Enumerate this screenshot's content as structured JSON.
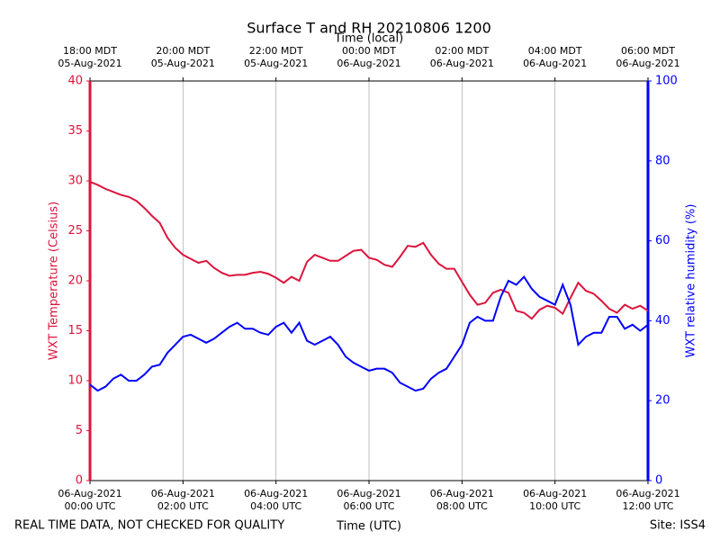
{
  "chart_data": {
    "type": "line",
    "title": "Surface T and RH 20210806 1200",
    "xlabel": "Time (UTC)",
    "x2label": "Time (local)",
    "footnote_left": "REAL TIME DATA, NOT CHECKED FOR QUALITY",
    "footnote_right": "Site: ISS4",
    "x": [
      "2021-08-06 00:00",
      "2021-08-06 00:10",
      "2021-08-06 00:20",
      "2021-08-06 00:30",
      "2021-08-06 00:40",
      "2021-08-06 00:50",
      "2021-08-06 01:00",
      "2021-08-06 01:10",
      "2021-08-06 01:20",
      "2021-08-06 01:30",
      "2021-08-06 01:40",
      "2021-08-06 01:50",
      "2021-08-06 02:00",
      "2021-08-06 02:10",
      "2021-08-06 02:20",
      "2021-08-06 02:30",
      "2021-08-06 02:40",
      "2021-08-06 02:50",
      "2021-08-06 03:00",
      "2021-08-06 03:10",
      "2021-08-06 03:20",
      "2021-08-06 03:30",
      "2021-08-06 03:40",
      "2021-08-06 03:50",
      "2021-08-06 04:00",
      "2021-08-06 04:10",
      "2021-08-06 04:20",
      "2021-08-06 04:30",
      "2021-08-06 04:40",
      "2021-08-06 04:50",
      "2021-08-06 05:00",
      "2021-08-06 05:10",
      "2021-08-06 05:20",
      "2021-08-06 05:30",
      "2021-08-06 05:40",
      "2021-08-06 05:50",
      "2021-08-06 06:00",
      "2021-08-06 06:10",
      "2021-08-06 06:20",
      "2021-08-06 06:30",
      "2021-08-06 06:40",
      "2021-08-06 06:50",
      "2021-08-06 07:00",
      "2021-08-06 07:10",
      "2021-08-06 07:20",
      "2021-08-06 07:30",
      "2021-08-06 07:40",
      "2021-08-06 07:50",
      "2021-08-06 08:00",
      "2021-08-06 08:10",
      "2021-08-06 08:20",
      "2021-08-06 08:30",
      "2021-08-06 08:40",
      "2021-08-06 08:50",
      "2021-08-06 09:00",
      "2021-08-06 09:10",
      "2021-08-06 09:20",
      "2021-08-06 09:30",
      "2021-08-06 09:40",
      "2021-08-06 09:50",
      "2021-08-06 10:00",
      "2021-08-06 10:10",
      "2021-08-06 10:20",
      "2021-08-06 10:30",
      "2021-08-06 10:40",
      "2021-08-06 10:50",
      "2021-08-06 11:00",
      "2021-08-06 11:10",
      "2021-08-06 11:20",
      "2021-08-06 11:30",
      "2021-08-06 11:40",
      "2021-08-06 11:50",
      "2021-08-06 12:00"
    ],
    "series": [
      {
        "name": "WXT Temperature (Celsius)",
        "color": "#dc143c",
        "values": [
          29.9,
          29.6,
          29.2,
          28.9,
          28.6,
          28.4,
          28.0,
          27.3,
          26.5,
          25.8,
          24.3,
          23.3,
          22.6,
          22.2,
          21.8,
          22.0,
          21.3,
          20.8,
          20.5,
          20.6,
          20.6,
          20.8,
          20.9,
          20.7,
          20.3,
          19.8,
          20.4,
          20.0,
          21.9,
          22.6,
          22.3,
          22.0,
          22.0,
          22.5,
          23.0,
          23.1,
          22.3,
          22.1,
          21.6,
          21.4,
          22.4,
          23.5,
          23.4,
          23.8,
          22.6,
          21.7,
          21.2,
          21.2,
          19.9,
          18.6,
          17.6,
          17.8,
          18.8,
          19.1,
          18.8,
          17.0,
          16.8,
          16.2,
          17.1,
          17.5,
          17.3,
          16.7,
          18.3,
          19.8,
          19.0,
          18.7,
          18.0,
          17.2,
          16.8,
          17.6,
          17.2,
          17.5,
          17.0
        ]
      },
      {
        "name": "WXT relative humidity (%)",
        "color": "#0000ff",
        "axis": "y2",
        "values": [
          24,
          22.5,
          23.5,
          25.5,
          26.5,
          25,
          25,
          26.5,
          28.5,
          29,
          32,
          34,
          36,
          36.5,
          35.5,
          34.5,
          35.5,
          37,
          38.5,
          39.5,
          38,
          38,
          37,
          36.5,
          38.5,
          39.5,
          37,
          39.5,
          35,
          34,
          35,
          36,
          34,
          31,
          29.5,
          28.5,
          27.5,
          28,
          28,
          27,
          24.5,
          23.5,
          22.5,
          23,
          25.5,
          27,
          28,
          31,
          34,
          39.5,
          41,
          40,
          40,
          46,
          50,
          49,
          51,
          48,
          46,
          45,
          44,
          49,
          44,
          34,
          36,
          37,
          37,
          41,
          41,
          38,
          39,
          37.5,
          39
        ]
      }
    ],
    "xlim": [
      "2021-08-06 00:00",
      "2021-08-06 12:00"
    ],
    "xticks": [
      {
        "value": "2021-08-06 00:00",
        "label": "06-Aug-2021\n00:00 UTC"
      },
      {
        "value": "2021-08-06 02:00",
        "label": "06-Aug-2021\n02:00 UTC"
      },
      {
        "value": "2021-08-06 04:00",
        "label": "06-Aug-2021\n04:00 UTC"
      },
      {
        "value": "2021-08-06 06:00",
        "label": "06-Aug-2021\n06:00 UTC"
      },
      {
        "value": "2021-08-06 08:00",
        "label": "06-Aug-2021\n08:00 UTC"
      },
      {
        "value": "2021-08-06 10:00",
        "label": "06-Aug-2021\n10:00 UTC"
      },
      {
        "value": "2021-08-06 12:00",
        "label": "06-Aug-2021\n12:00 UTC"
      }
    ],
    "x2ticks": [
      {
        "value": "2021-08-06 00:00",
        "label": "18:00 MDT\n05-Aug-2021"
      },
      {
        "value": "2021-08-06 02:00",
        "label": "20:00 MDT\n05-Aug-2021"
      },
      {
        "value": "2021-08-06 04:00",
        "label": "22:00 MDT\n05-Aug-2021"
      },
      {
        "value": "2021-08-06 06:00",
        "label": "00:00 MDT\n06-Aug-2021"
      },
      {
        "value": "2021-08-06 08:00",
        "label": "02:00 MDT\n06-Aug-2021"
      },
      {
        "value": "2021-08-06 10:00",
        "label": "04:00 MDT\n06-Aug-2021"
      },
      {
        "value": "2021-08-06 12:00",
        "label": "06:00 MDT\n06-Aug-2021"
      }
    ],
    "ylim": [
      0,
      40
    ],
    "yticks": [
      0,
      5,
      10,
      15,
      20,
      25,
      30,
      35,
      40
    ],
    "y2lim": [
      0,
      100
    ],
    "y2ticks": [
      0,
      20,
      40,
      60,
      80,
      100
    ],
    "grid": "x"
  }
}
